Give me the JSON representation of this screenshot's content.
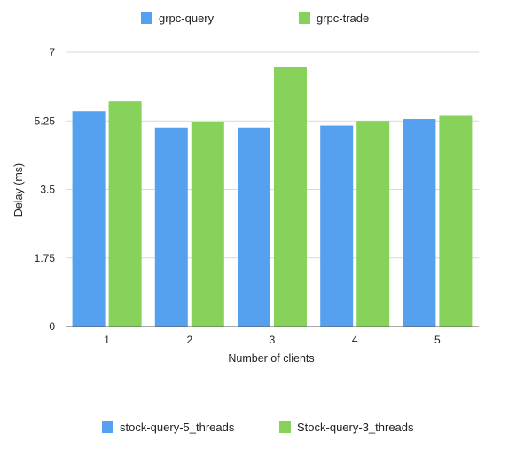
{
  "chart_data": {
    "type": "bar",
    "categories": [
      "1",
      "2",
      "3",
      "4",
      "5"
    ],
    "xlabel": "Number of clients",
    "ylabel": "Delay (ms)",
    "ylim": [
      0,
      7
    ],
    "yticks": [
      "0",
      "1.75",
      "3.5",
      "5.25",
      "7"
    ],
    "grid": true,
    "series": [
      {
        "name": "stock-query-5_threads",
        "color": "#56a0f0",
        "values": [
          5.5,
          5.08,
          5.08,
          5.13,
          5.3
        ]
      },
      {
        "name": "Stock-query-3_threads",
        "color": "#86d25a",
        "values": [
          5.75,
          5.23,
          6.62,
          5.25,
          5.38
        ]
      }
    ],
    "top_legend": [
      {
        "name": "grpc-query",
        "color": "#56a0f0"
      },
      {
        "name": "grpc-trade",
        "color": "#86d25a"
      }
    ],
    "legend_placement": "top and bottom"
  }
}
